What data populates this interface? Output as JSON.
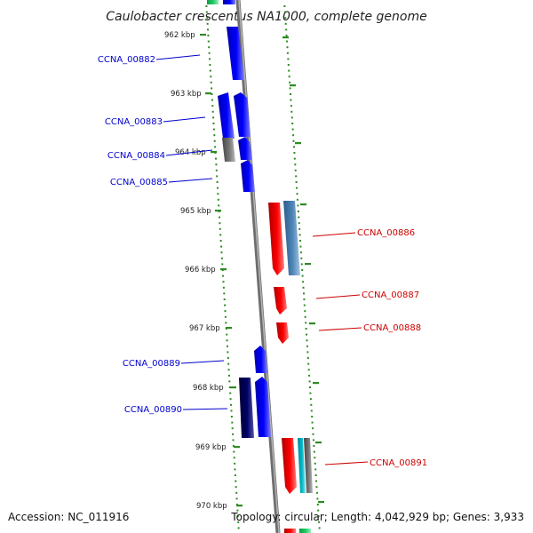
{
  "title": "Caulobacter crescentus NA1000, complete genome",
  "accession": "Accession: NC_011916",
  "topology": "Topology: circular; Length: 4,042,929 bp; Genes: 3,933",
  "colors": {
    "plus_strand": "#0000ff",
    "minus_strand": "#ff0000",
    "plus_label": "#0000cc",
    "minus_label": "#cc0000",
    "tick": "#2e8b22",
    "backbone": "#8a8a8a",
    "grey_gene": "#777777",
    "navy_gene": "#000066",
    "steelblue_gene": "#4f86b8",
    "cyan_gene": "#00b8c8",
    "green_gene": "#22cc66"
  },
  "kbp_marks": [
    {
      "label": "962 kbp"
    },
    {
      "label": "963 kbp"
    },
    {
      "label": "964 kbp"
    },
    {
      "label": "965 kbp"
    },
    {
      "label": "966 kbp"
    },
    {
      "label": "967 kbp"
    },
    {
      "label": "968 kbp"
    },
    {
      "label": "969 kbp"
    },
    {
      "label": "970 kbp"
    }
  ],
  "genes_left": [
    {
      "label": "CCNA_00882"
    },
    {
      "label": "CCNA_00883"
    },
    {
      "label": "CCNA_00884"
    },
    {
      "label": "CCNA_00885"
    },
    {
      "label": "CCNA_00889"
    },
    {
      "label": "CCNA_00890"
    }
  ],
  "genes_right": [
    {
      "label": "CCNA_00886"
    },
    {
      "label": "CCNA_00887"
    },
    {
      "label": "CCNA_00888"
    },
    {
      "label": "CCNA_00891"
    }
  ]
}
